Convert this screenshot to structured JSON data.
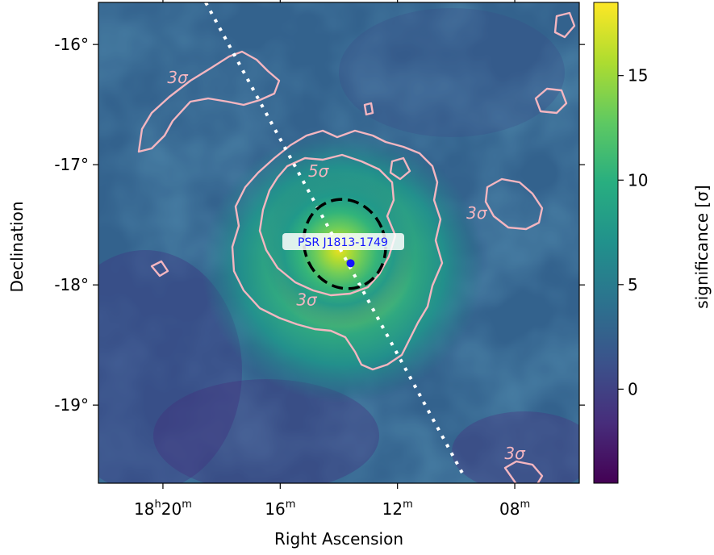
{
  "chart_data": {
    "type": "heatmap",
    "title": "",
    "xlabel": "Right Ascension",
    "ylabel": "Declination",
    "x_ticks": [
      {
        "ra_min": 20.0,
        "h": "18",
        "hsup": "h",
        "m": "20",
        "msup": "m"
      },
      {
        "ra_min": 16.0,
        "h": "",
        "hsup": "",
        "m": "16",
        "msup": "m"
      },
      {
        "ra_min": 12.0,
        "h": "",
        "hsup": "",
        "m": "12",
        "msup": "m"
      },
      {
        "ra_min": 8.0,
        "h": "",
        "hsup": "",
        "m": "08",
        "msup": "m"
      }
    ],
    "y_ticks": [
      {
        "dec": -16,
        "label": "-16°"
      },
      {
        "dec": -17,
        "label": "-17°"
      },
      {
        "dec": -18,
        "label": "-18°"
      },
      {
        "dec": -19,
        "label": "-19°"
      }
    ],
    "ra_range_min": [
      22.2,
      5.8
    ],
    "dec_range": [
      -19.65,
      -15.65
    ],
    "colorbar": {
      "label": "significance [σ]",
      "range": [
        -4.5,
        18.5
      ],
      "ticks": [
        0,
        5,
        10,
        15
      ],
      "colormap": "viridis"
    },
    "peak": {
      "ra_min": 13.8,
      "dec": -17.72,
      "significance": 18.3
    },
    "pulsar": {
      "name": "PSR J1813-1749",
      "ra_min": 13.6,
      "dec": -17.82,
      "color": "#1414ff"
    },
    "ellipse_fit": {
      "ra_min": 13.8,
      "dec": -17.66,
      "style": "dashed",
      "color": "#000000"
    },
    "galactic_plane": {
      "style": "dotted",
      "color": "#ffffff"
    },
    "contours": [
      {
        "level": "3σ",
        "color": "#f4b6c0"
      },
      {
        "level": "5σ",
        "color": "#f4b6c0"
      }
    ],
    "contour_labels": [
      {
        "text": "3σ",
        "ra_min": 19.5,
        "dec": -16.32
      },
      {
        "text": "5σ",
        "ra_min": 14.7,
        "dec": -17.1
      },
      {
        "text": "3σ",
        "ra_min": 15.1,
        "dec": -18.17
      },
      {
        "text": "3σ",
        "ra_min": 9.3,
        "dec": -17.45
      },
      {
        "text": "3σ",
        "ra_min": 8.0,
        "dec": -19.45
      }
    ]
  }
}
